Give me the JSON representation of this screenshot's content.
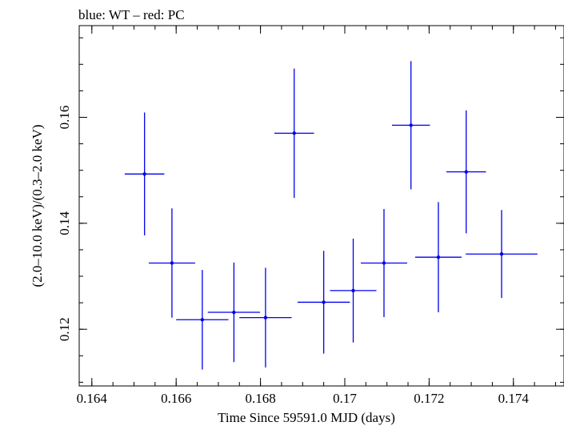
{
  "chart_data": {
    "type": "scatter",
    "title": "blue: WT – red: PC",
    "xlabel": "Time Since 59591.0 MJD (days)",
    "ylabel": "(2.0–10.0 keV)/(0.3–2.0 keV)",
    "xlim": [
      0.1637,
      0.1752
    ],
    "ylim": [
      0.1093,
      0.1773
    ],
    "x_ticks": [
      0.164,
      0.166,
      0.168,
      0.17,
      0.172,
      0.174
    ],
    "x_tick_labels": [
      "0.164",
      "0.166",
      "0.168",
      "0.17",
      "0.172",
      "0.174"
    ],
    "y_ticks": [
      0.12,
      0.14,
      0.16
    ],
    "y_tick_labels": [
      "0.12",
      "0.14",
      "0.16"
    ],
    "series": [
      {
        "color": "#0000ee",
        "points": [
          {
            "x": 0.16525,
            "y": 0.1493,
            "xerr": 0.00047,
            "yerr": 0.0116
          },
          {
            "x": 0.1659,
            "y": 0.1325,
            "xerr": 0.00055,
            "yerr": 0.0103
          },
          {
            "x": 0.16662,
            "y": 0.1218,
            "xerr": 0.00062,
            "yerr": 0.0094
          },
          {
            "x": 0.16737,
            "y": 0.1232,
            "xerr": 0.00062,
            "yerr": 0.0094
          },
          {
            "x": 0.16812,
            "y": 0.1222,
            "xerr": 0.00062,
            "yerr": 0.0094
          },
          {
            "x": 0.1688,
            "y": 0.157,
            "xerr": 0.00047,
            "yerr": 0.0122
          },
          {
            "x": 0.1695,
            "y": 0.1251,
            "xerr": 0.00062,
            "yerr": 0.0097
          },
          {
            "x": 0.1702,
            "y": 0.1273,
            "xerr": 0.00055,
            "yerr": 0.0098
          },
          {
            "x": 0.17093,
            "y": 0.1325,
            "xerr": 0.00055,
            "yerr": 0.0102
          },
          {
            "x": 0.17157,
            "y": 0.1585,
            "xerr": 0.00045,
            "yerr": 0.0121
          },
          {
            "x": 0.17222,
            "y": 0.1336,
            "xerr": 0.00055,
            "yerr": 0.0104
          },
          {
            "x": 0.17288,
            "y": 0.1497,
            "xerr": 0.00047,
            "yerr": 0.0116
          },
          {
            "x": 0.17372,
            "y": 0.1342,
            "xerr": 0.00085,
            "yerr": 0.0083
          }
        ]
      }
    ]
  }
}
